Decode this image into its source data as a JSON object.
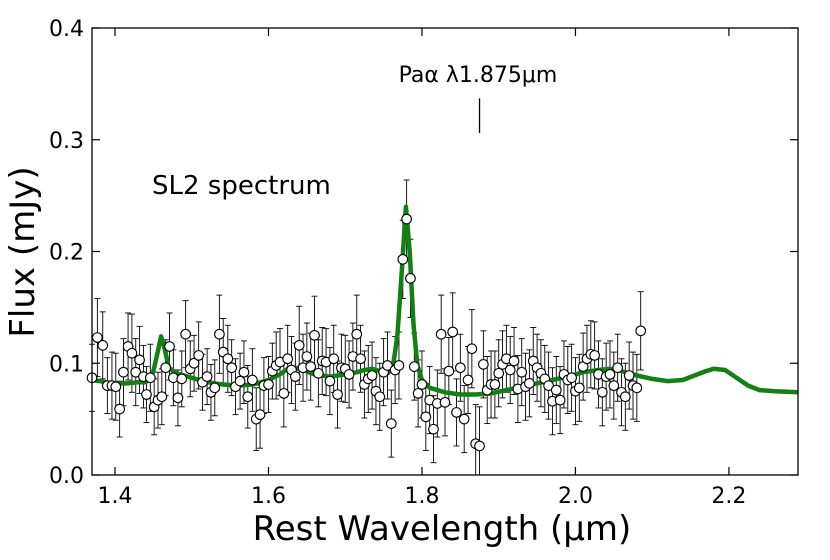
{
  "chart_data": {
    "type": "scatter",
    "xlabel": "Rest Wavelength (μm)",
    "ylabel": "Flux (mJy)",
    "xlim": [
      1.37,
      2.29
    ],
    "ylim": [
      0.0,
      0.4
    ],
    "xticks": [
      1.4,
      1.6,
      1.8,
      2.0,
      2.2
    ],
    "xtick_labels": [
      "1.4",
      "1.6",
      "1.8",
      "2.0",
      "2.2"
    ],
    "yticks": [
      0.0,
      0.1,
      0.2,
      0.3,
      0.4
    ],
    "ytick_labels": [
      "0.0",
      "0.1",
      "0.2",
      "0.3",
      "0.4"
    ],
    "grid": false,
    "annotations": {
      "spectrum_label": "SL2 spectrum",
      "line_label": "Paα λ1.875μm",
      "line_wavelength": 1.875,
      "line_marker_range": [
        0.306,
        0.337
      ]
    },
    "series": [
      {
        "name": "data",
        "style": "open-circle-with-errorbars",
        "color": "#000000",
        "points": [
          [
            1.37,
            0.087,
            0.03
          ],
          [
            1.377,
            0.123,
            0.035
          ],
          [
            1.384,
            0.116,
            0.03
          ],
          [
            1.39,
            0.08,
            0.025
          ],
          [
            1.396,
            0.08,
            0.03
          ],
          [
            1.401,
            0.079,
            0.03
          ],
          [
            1.406,
            0.059,
            0.025
          ],
          [
            1.411,
            0.092,
            0.03
          ],
          [
            1.417,
            0.115,
            0.03
          ],
          [
            1.422,
            0.109,
            0.035
          ],
          [
            1.427,
            0.092,
            0.03
          ],
          [
            1.432,
            0.103,
            0.03
          ],
          [
            1.437,
            0.088,
            0.028
          ],
          [
            1.441,
            0.072,
            0.025
          ],
          [
            1.446,
            0.087,
            0.03
          ],
          [
            1.451,
            0.061,
            0.025
          ],
          [
            1.456,
            0.067,
            0.025
          ],
          [
            1.461,
            0.07,
            0.025
          ],
          [
            1.466,
            0.096,
            0.025
          ],
          [
            1.471,
            0.115,
            0.03
          ],
          [
            1.476,
            0.087,
            0.025
          ],
          [
            1.482,
            0.069,
            0.025
          ],
          [
            1.487,
            0.086,
            0.025
          ],
          [
            1.492,
            0.126,
            0.03
          ],
          [
            1.498,
            0.095,
            0.025
          ],
          [
            1.503,
            0.1,
            0.025
          ],
          [
            1.509,
            0.107,
            0.03
          ],
          [
            1.514,
            0.083,
            0.025
          ],
          [
            1.52,
            0.088,
            0.025
          ],
          [
            1.525,
            0.074,
            0.025
          ],
          [
            1.53,
            0.078,
            0.025
          ],
          [
            1.536,
            0.126,
            0.035
          ],
          [
            1.541,
            0.11,
            0.03
          ],
          [
            1.547,
            0.104,
            0.03
          ],
          [
            1.552,
            0.096,
            0.025
          ],
          [
            1.557,
            0.079,
            0.025
          ],
          [
            1.563,
            0.084,
            0.025
          ],
          [
            1.568,
            0.092,
            0.028
          ],
          [
            1.573,
            0.07,
            0.028
          ],
          [
            1.579,
            0.085,
            0.028
          ],
          [
            1.584,
            0.05,
            0.028
          ],
          [
            1.589,
            0.054,
            0.03
          ],
          [
            1.594,
            0.08,
            0.025
          ],
          [
            1.6,
            0.081,
            0.025
          ],
          [
            1.605,
            0.093,
            0.025
          ],
          [
            1.61,
            0.098,
            0.03
          ],
          [
            1.615,
            0.101,
            0.03
          ],
          [
            1.62,
            0.073,
            0.03
          ],
          [
            1.625,
            0.104,
            0.03
          ],
          [
            1.63,
            0.094,
            0.03
          ],
          [
            1.635,
            0.088,
            0.03
          ],
          [
            1.64,
            0.116,
            0.035
          ],
          [
            1.645,
            0.096,
            0.03
          ],
          [
            1.65,
            0.106,
            0.03
          ],
          [
            1.655,
            0.097,
            0.03
          ],
          [
            1.66,
            0.125,
            0.035
          ],
          [
            1.665,
            0.091,
            0.03
          ],
          [
            1.67,
            0.102,
            0.03
          ],
          [
            1.675,
            0.101,
            0.03
          ],
          [
            1.68,
            0.084,
            0.03
          ],
          [
            1.685,
            0.104,
            0.03
          ],
          [
            1.69,
            0.072,
            0.03
          ],
          [
            1.695,
            0.096,
            0.03
          ],
          [
            1.7,
            0.095,
            0.03
          ],
          [
            1.705,
            0.09,
            0.03
          ],
          [
            1.71,
            0.106,
            0.03
          ],
          [
            1.715,
            0.126,
            0.035
          ],
          [
            1.72,
            0.104,
            0.03
          ],
          [
            1.725,
            0.081,
            0.03
          ],
          [
            1.73,
            0.086,
            0.03
          ],
          [
            1.735,
            0.089,
            0.03
          ],
          [
            1.74,
            0.075,
            0.03
          ],
          [
            1.745,
            0.07,
            0.03
          ],
          [
            1.75,
            0.092,
            0.03
          ],
          [
            1.755,
            0.098,
            0.03
          ],
          [
            1.76,
            0.046,
            0.03
          ],
          [
            1.765,
            0.094,
            0.03
          ],
          [
            1.77,
            0.098,
            0.03
          ],
          [
            1.775,
            0.193,
            0.035
          ],
          [
            1.78,
            0.229,
            0.035
          ],
          [
            1.785,
            0.176,
            0.035
          ],
          [
            1.79,
            0.097,
            0.03
          ],
          [
            1.795,
            0.073,
            0.03
          ],
          [
            1.8,
            0.081,
            0.03
          ],
          [
            1.805,
            0.052,
            0.03
          ],
          [
            1.81,
            0.067,
            0.03
          ],
          [
            1.815,
            0.041,
            0.03
          ],
          [
            1.82,
            0.064,
            0.03
          ],
          [
            1.825,
            0.126,
            0.035
          ],
          [
            1.83,
            0.065,
            0.03
          ],
          [
            1.835,
            0.093,
            0.03
          ],
          [
            1.84,
            0.128,
            0.035
          ],
          [
            1.845,
            0.056,
            0.03
          ],
          [
            1.85,
            0.096,
            0.03
          ],
          [
            1.855,
            0.05,
            0.03
          ],
          [
            1.86,
            0.085,
            0.03
          ],
          [
            1.865,
            0.113,
            0.035
          ],
          [
            1.87,
            0.028,
            0.035
          ],
          [
            1.875,
            0.026,
            0.035
          ],
          [
            1.88,
            0.099,
            0.03
          ],
          [
            1.885,
            0.076,
            0.03
          ],
          [
            1.89,
            0.081,
            0.03
          ],
          [
            1.895,
            0.081,
            0.03
          ],
          [
            1.9,
            0.091,
            0.03
          ],
          [
            1.905,
            0.099,
            0.03
          ],
          [
            1.91,
            0.104,
            0.03
          ],
          [
            1.915,
            0.094,
            0.03
          ],
          [
            1.92,
            0.102,
            0.03
          ],
          [
            1.925,
            0.077,
            0.03
          ],
          [
            1.93,
            0.092,
            0.03
          ],
          [
            1.935,
            0.079,
            0.03
          ],
          [
            1.94,
            0.082,
            0.03
          ],
          [
            1.945,
            0.102,
            0.03
          ],
          [
            1.95,
            0.096,
            0.03
          ],
          [
            1.955,
            0.091,
            0.03
          ],
          [
            1.96,
            0.086,
            0.03
          ],
          [
            1.965,
            0.08,
            0.03
          ],
          [
            1.97,
            0.066,
            0.03
          ],
          [
            1.975,
            0.076,
            0.03
          ],
          [
            1.98,
            0.067,
            0.03
          ],
          [
            1.985,
            0.09,
            0.03
          ],
          [
            1.99,
            0.085,
            0.03
          ],
          [
            1.995,
            0.087,
            0.03
          ],
          [
            2.0,
            0.075,
            0.03
          ],
          [
            2.005,
            0.078,
            0.03
          ],
          [
            2.01,
            0.097,
            0.03
          ],
          [
            2.015,
            0.104,
            0.03
          ],
          [
            2.02,
            0.108,
            0.03
          ],
          [
            2.025,
            0.107,
            0.03
          ],
          [
            2.03,
            0.09,
            0.03
          ],
          [
            2.035,
            0.074,
            0.03
          ],
          [
            2.04,
            0.088,
            0.03
          ],
          [
            2.045,
            0.09,
            0.03
          ],
          [
            2.05,
            0.08,
            0.03
          ],
          [
            2.055,
            0.096,
            0.03
          ],
          [
            2.06,
            0.074,
            0.03
          ],
          [
            2.065,
            0.07,
            0.03
          ],
          [
            2.07,
            0.089,
            0.03
          ],
          [
            2.075,
            0.08,
            0.03
          ],
          [
            2.08,
            0.078,
            0.03
          ],
          [
            2.085,
            0.129,
            0.035
          ]
        ]
      },
      {
        "name": "model",
        "style": "line",
        "color": "#128012",
        "points": [
          [
            1.37,
            0.085
          ],
          [
            1.38,
            0.084
          ],
          [
            1.395,
            0.082
          ],
          [
            1.415,
            0.082
          ],
          [
            1.43,
            0.083
          ],
          [
            1.44,
            0.083
          ],
          [
            1.445,
            0.086
          ],
          [
            1.45,
            0.093
          ],
          [
            1.455,
            0.108
          ],
          [
            1.46,
            0.124
          ],
          [
            1.465,
            0.112
          ],
          [
            1.47,
            0.096
          ],
          [
            1.48,
            0.091
          ],
          [
            1.49,
            0.089
          ],
          [
            1.5,
            0.087
          ],
          [
            1.52,
            0.083
          ],
          [
            1.54,
            0.081
          ],
          [
            1.56,
            0.08
          ],
          [
            1.58,
            0.081
          ],
          [
            1.6,
            0.085
          ],
          [
            1.615,
            0.09
          ],
          [
            1.625,
            0.095
          ],
          [
            1.635,
            0.096
          ],
          [
            1.645,
            0.094
          ],
          [
            1.66,
            0.09
          ],
          [
            1.68,
            0.088
          ],
          [
            1.7,
            0.09
          ],
          [
            1.715,
            0.092
          ],
          [
            1.725,
            0.094
          ],
          [
            1.735,
            0.095
          ],
          [
            1.745,
            0.093
          ],
          [
            1.755,
            0.091
          ],
          [
            1.762,
            0.096
          ],
          [
            1.768,
            0.125
          ],
          [
            1.774,
            0.185
          ],
          [
            1.779,
            0.24
          ],
          [
            1.784,
            0.2
          ],
          [
            1.789,
            0.135
          ],
          [
            1.794,
            0.098
          ],
          [
            1.8,
            0.085
          ],
          [
            1.81,
            0.078
          ],
          [
            1.83,
            0.074
          ],
          [
            1.85,
            0.072
          ],
          [
            1.87,
            0.072
          ],
          [
            1.89,
            0.073
          ],
          [
            1.91,
            0.076
          ],
          [
            1.93,
            0.079
          ],
          [
            1.95,
            0.082
          ],
          [
            1.97,
            0.085
          ],
          [
            1.99,
            0.088
          ],
          [
            2.01,
            0.092
          ],
          [
            2.03,
            0.094
          ],
          [
            2.045,
            0.095
          ],
          [
            2.06,
            0.093
          ],
          [
            2.08,
            0.089
          ],
          [
            2.1,
            0.086
          ],
          [
            2.12,
            0.084
          ],
          [
            2.14,
            0.085
          ],
          [
            2.155,
            0.089
          ],
          [
            2.17,
            0.093
          ],
          [
            2.18,
            0.095
          ],
          [
            2.195,
            0.094
          ],
          [
            2.21,
            0.087
          ],
          [
            2.225,
            0.08
          ],
          [
            2.24,
            0.076
          ],
          [
            2.26,
            0.075
          ],
          [
            2.29,
            0.074
          ]
        ]
      }
    ]
  }
}
